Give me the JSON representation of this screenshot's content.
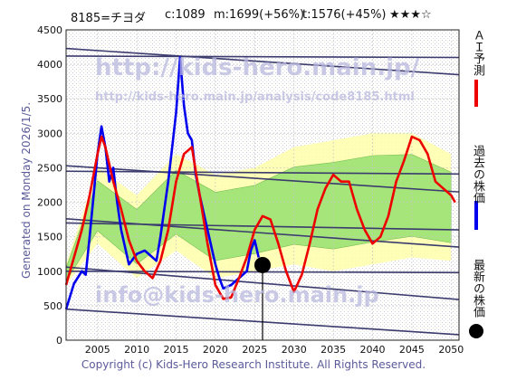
{
  "header": {
    "code_name": "8185=チヨダ",
    "current": "c:1089",
    "mean": "m:1699(+56%)",
    "target": "t:1576(+45%)",
    "stars": "★★★☆"
  },
  "side_labels": {
    "ai_forecast": "ＡＩ予測",
    "past_price": "過去の株価",
    "latest_price": "最新の株価"
  },
  "generated": "Generated on Monday 2026/1/5.",
  "copyright": "Copyright (c) Kids-Hero Research Institute. All Rights Reserved.",
  "watermarks": {
    "url": "http://kids-hero.main.jp/",
    "analysis_url": "http://kids-hero.main.jp/analysis/code8185.html",
    "email": "info@kids-hero.main.jp"
  },
  "colors": {
    "past": "#0000ee",
    "forecast": "#ee0000",
    "band_green": "#88dd66",
    "band_yellow": "#ffffaa",
    "trend": "#3b3b6e"
  },
  "chart_data": {
    "type": "line",
    "xlim": [
      2001,
      2051
    ],
    "ylim": [
      0,
      4500
    ],
    "x_ticks": [
      2005,
      2010,
      2015,
      2020,
      2025,
      2030,
      2035,
      2040,
      2045,
      2050
    ],
    "y_ticks": [
      0,
      500,
      1000,
      1500,
      2000,
      2500,
      3000,
      3500,
      4000,
      4500
    ],
    "grid": true,
    "latest_point": {
      "x": 2026.0,
      "y": 1089
    },
    "series": [
      {
        "name": "過去の株価",
        "points": [
          [
            2001,
            450
          ],
          [
            2002,
            820
          ],
          [
            2003,
            1000
          ],
          [
            2003.5,
            950
          ],
          [
            2004,
            1500
          ],
          [
            2004.5,
            2100
          ],
          [
            2005,
            2700
          ],
          [
            2005.5,
            3100
          ],
          [
            2006,
            2800
          ],
          [
            2006.5,
            2300
          ],
          [
            2007,
            2500
          ],
          [
            2007.5,
            2000
          ],
          [
            2008,
            1600
          ],
          [
            2009,
            1100
          ],
          [
            2010,
            1250
          ],
          [
            2011,
            1300
          ],
          [
            2012,
            1200
          ],
          [
            2012.5,
            1150
          ],
          [
            2013,
            1500
          ],
          [
            2014,
            2300
          ],
          [
            2014.5,
            2800
          ],
          [
            2015,
            3300
          ],
          [
            2015.5,
            4100
          ],
          [
            2016,
            3400
          ],
          [
            2016.5,
            3000
          ],
          [
            2017,
            2900
          ],
          [
            2017.5,
            2400
          ],
          [
            2018,
            2100
          ],
          [
            2019,
            1600
          ],
          [
            2020,
            1100
          ],
          [
            2020.5,
            900
          ],
          [
            2021,
            750
          ],
          [
            2022,
            800
          ],
          [
            2023,
            900
          ],
          [
            2024,
            1000
          ],
          [
            2024.5,
            1300
          ],
          [
            2025,
            1450
          ],
          [
            2025.5,
            1200
          ]
        ]
      },
      {
        "name": "ＡＩ予測",
        "points": [
          [
            2001,
            800
          ],
          [
            2002,
            1200
          ],
          [
            2003,
            1600
          ],
          [
            2004,
            2100
          ],
          [
            2005,
            2700
          ],
          [
            2005.5,
            2950
          ],
          [
            2006,
            2800
          ],
          [
            2007,
            2300
          ],
          [
            2008,
            1900
          ],
          [
            2009,
            1450
          ],
          [
            2010,
            1150
          ],
          [
            2011,
            1000
          ],
          [
            2012,
            900
          ],
          [
            2013,
            1150
          ],
          [
            2014,
            1600
          ],
          [
            2015,
            2300
          ],
          [
            2016,
            2700
          ],
          [
            2017,
            2800
          ],
          [
            2018,
            2100
          ],
          [
            2019,
            1400
          ],
          [
            2020,
            800
          ],
          [
            2021,
            600
          ],
          [
            2022,
            620
          ],
          [
            2023,
            900
          ],
          [
            2024,
            1200
          ],
          [
            2025,
            1600
          ],
          [
            2026,
            1800
          ],
          [
            2027,
            1750
          ],
          [
            2028,
            1400
          ],
          [
            2029,
            1000
          ],
          [
            2030,
            700
          ],
          [
            2031,
            950
          ],
          [
            2032,
            1400
          ],
          [
            2033,
            1900
          ],
          [
            2034,
            2200
          ],
          [
            2035,
            2400
          ],
          [
            2036,
            2300
          ],
          [
            2037,
            2300
          ],
          [
            2038,
            1900
          ],
          [
            2039,
            1600
          ],
          [
            2040,
            1400
          ],
          [
            2041,
            1500
          ],
          [
            2042,
            1800
          ],
          [
            2043,
            2300
          ],
          [
            2044,
            2600
          ],
          [
            2045,
            2950
          ],
          [
            2046,
            2900
          ],
          [
            2047,
            2700
          ],
          [
            2048,
            2300
          ],
          [
            2049,
            2200
          ],
          [
            2050,
            2100
          ],
          [
            2050.5,
            2000
          ]
        ]
      }
    ],
    "trend_lines": [
      [
        [
          2001,
          4230
        ],
        [
          2051,
          3850
        ]
      ],
      [
        [
          2001,
          4120
        ],
        [
          2051,
          4100
        ]
      ],
      [
        [
          2001,
          2530
        ],
        [
          2051,
          2150
        ]
      ],
      [
        [
          2001,
          2450
        ],
        [
          2051,
          2410
        ]
      ],
      [
        [
          2001,
          1760
        ],
        [
          2051,
          1350
        ]
      ],
      [
        [
          2001,
          1700
        ],
        [
          2051,
          1600
        ]
      ],
      [
        [
          2001,
          1060
        ],
        [
          2051,
          590
        ]
      ],
      [
        [
          2001,
          1000
        ],
        [
          2051,
          980
        ]
      ],
      [
        [
          2001,
          450
        ],
        [
          2051,
          80
        ]
      ]
    ],
    "forecast_band": {
      "x": [
        2001,
        2005,
        2010,
        2015,
        2020,
        2025,
        2030,
        2035,
        2040,
        2045,
        2050
      ],
      "upper": [
        1100,
        2500,
        2100,
        2700,
        2400,
        2500,
        2800,
        2900,
        3000,
        3000,
        2700
      ],
      "lower": [
        800,
        1400,
        900,
        1300,
        900,
        1000,
        1100,
        1000,
        1100,
        1200,
        1150
      ]
    }
  }
}
